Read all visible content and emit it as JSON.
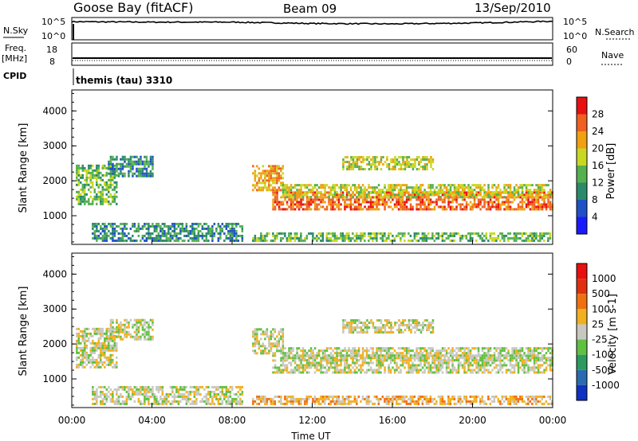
{
  "header": {
    "station": "Goose Bay (fitACF)",
    "beam": "Beam 09",
    "date": "13/Sep/2010"
  },
  "noise_panel": {
    "left_label": "N.Sky",
    "right_label": "N.Search",
    "left_ticks": [
      "10^5",
      "10^0"
    ],
    "right_ticks": [
      "10^5",
      "10^0"
    ]
  },
  "freq_panel": {
    "left_label_line1": "Freq.",
    "left_label_line2": "[MHz]",
    "right_label": "Nave",
    "left_ticks": [
      "18",
      "8"
    ],
    "right_ticks": [
      "60",
      "0"
    ]
  },
  "cpid": {
    "label": "CPID",
    "value": "themis (tau) 3310"
  },
  "axes": {
    "ylabel": "Slant Range [km]",
    "xlabel": "Time UT",
    "yticks": [
      "4000",
      "3000",
      "2000",
      "1000"
    ],
    "xticks": [
      "00:00",
      "04:00",
      "08:00",
      "12:00",
      "16:00",
      "20:00",
      "00:00"
    ]
  },
  "colorbars": {
    "power": {
      "label": "Power [dB]",
      "ticks": [
        "28",
        "24",
        "20",
        "16",
        "12",
        "8",
        "4"
      ],
      "colors": [
        "#1a1aff",
        "#2050c8",
        "#2a8a6a",
        "#55b050",
        "#c8d820",
        "#f0a010",
        "#f06020",
        "#e81010"
      ]
    },
    "velocity": {
      "label": "Velocity [m s-1]",
      "ticks": [
        "1000",
        "500",
        "100",
        "25",
        "-25",
        "-100",
        "-500",
        "-1000"
      ],
      "colors": [
        "#1030c0",
        "#2a6ab0",
        "#2a9a60",
        "#60c040",
        "#c8c8c0",
        "#f0b020",
        "#f07010",
        "#e03010",
        "#e81010"
      ]
    }
  },
  "chart_data": [
    {
      "type": "line",
      "title": "N.Sky / N.Search",
      "x": [
        "00:00",
        "04:00",
        "08:00",
        "12:00",
        "16:00",
        "20:00",
        "00:00"
      ],
      "series": [
        {
          "name": "N.Sky",
          "values": [
            4.6,
            4.5,
            4.5,
            4.2,
            4.1,
            4.3,
            4.7
          ]
        }
      ]
    },
    {
      "type": "line",
      "title": "Freq. / Nave",
      "x": [
        "00:00",
        "24:00"
      ],
      "series": [
        {
          "name": "Freq.",
          "values": [
            11,
            11
          ]
        },
        {
          "name": "Nave",
          "values": [
            10,
            10
          ]
        }
      ]
    },
    {
      "type": "heatmap",
      "title": "Power [dB]",
      "xlim_hours": [
        0,
        24
      ],
      "ylim_km": [
        180,
        4600
      ],
      "regions": [
        {
          "t0": 0.2,
          "t1": 2.2,
          "r0": 1300,
          "r1": 2450,
          "level": 3
        },
        {
          "t0": 1.8,
          "t1": 4.0,
          "r0": 2100,
          "r1": 2700,
          "level": 2
        },
        {
          "t0": 1.0,
          "t1": 8.5,
          "r0": 250,
          "r1": 750,
          "level": 2
        },
        {
          "t0": 9.0,
          "t1": 10.5,
          "r0": 1700,
          "r1": 2400,
          "level": 5
        },
        {
          "t0": 10.0,
          "t1": 24.0,
          "r0": 1150,
          "r1": 1650,
          "level": 6
        },
        {
          "t0": 10.5,
          "t1": 24.0,
          "r0": 1500,
          "r1": 1900,
          "level": 4
        },
        {
          "t0": 13.5,
          "t1": 18.0,
          "r0": 2300,
          "r1": 2650,
          "level": 4
        },
        {
          "t0": 9.0,
          "t1": 24.0,
          "r0": 250,
          "r1": 500,
          "level": 3
        }
      ]
    },
    {
      "type": "heatmap",
      "title": "Velocity [m s-1]",
      "xlim_hours": [
        0,
        24
      ],
      "ylim_km": [
        180,
        4600
      ],
      "regions": [
        {
          "t0": 0.2,
          "t1": 2.2,
          "r0": 1300,
          "r1": 2450,
          "level": 4
        },
        {
          "t0": 1.8,
          "t1": 4.0,
          "r0": 2100,
          "r1": 2700,
          "level": 4
        },
        {
          "t0": 1.0,
          "t1": 8.5,
          "r0": 250,
          "r1": 750,
          "level": 4
        },
        {
          "t0": 9.0,
          "t1": 10.5,
          "r0": 1700,
          "r1": 2400,
          "level": 4
        },
        {
          "t0": 10.0,
          "t1": 24.0,
          "r0": 1150,
          "r1": 1650,
          "level": 4
        },
        {
          "t0": 10.5,
          "t1": 24.0,
          "r0": 1500,
          "r1": 1900,
          "level": 4
        },
        {
          "t0": 13.5,
          "t1": 18.0,
          "r0": 2300,
          "r1": 2650,
          "level": 4
        },
        {
          "t0": 9.0,
          "t1": 24.0,
          "r0": 250,
          "r1": 500,
          "level": 5
        }
      ]
    }
  ]
}
